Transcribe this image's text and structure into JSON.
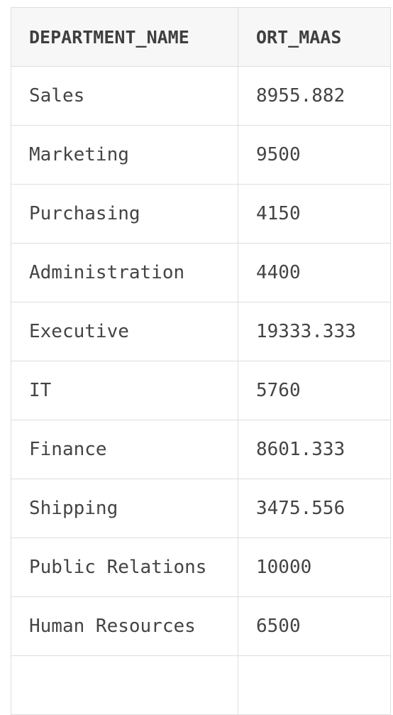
{
  "table": {
    "columns": [
      "DEPARTMENT_NAME",
      "ORT_MAAS"
    ],
    "rows": [
      [
        "Sales",
        "8955.882"
      ],
      [
        "Marketing",
        "9500"
      ],
      [
        "Purchasing",
        "4150"
      ],
      [
        "Administration",
        "4400"
      ],
      [
        "Executive",
        "19333.333"
      ],
      [
        "IT",
        "5760"
      ],
      [
        "Finance",
        "8601.333"
      ],
      [
        "Shipping",
        "3475.556"
      ],
      [
        "Public Relations",
        "10000"
      ],
      [
        "Human Resources",
        "6500"
      ],
      [
        "",
        ""
      ]
    ]
  }
}
